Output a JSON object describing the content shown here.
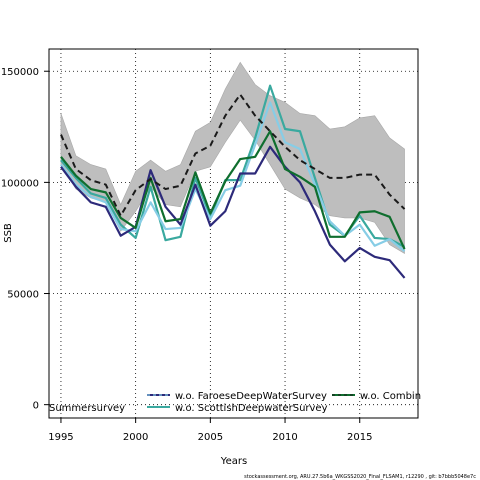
{
  "chart_data": {
    "type": "line",
    "xlabel": "Years",
    "ylabel": "SSB",
    "xlim": [
      1994.2,
      2018.9
    ],
    "ylim": [
      -6000,
      160000
    ],
    "x_ticks": [
      1995,
      2000,
      2005,
      2010,
      2015
    ],
    "y_ticks": [
      0,
      50000,
      100000,
      150000
    ],
    "y_tick_labels": [
      "0",
      "50000",
      "100000",
      "150000"
    ],
    "grid": true,
    "legend_placement": "bottom",
    "x": [
      1995,
      1996,
      1997,
      1998,
      1999,
      2000,
      2001,
      2002,
      2003,
      2004,
      2005,
      2006,
      2007,
      2008,
      2009,
      2010,
      2011,
      2012,
      2013,
      2014,
      2015,
      2016,
      2017,
      2018
    ],
    "confidence_band": {
      "upper": [
        131000,
        112000,
        108000,
        106000,
        90000,
        105000,
        110000,
        105000,
        108000,
        123000,
        127000,
        142000,
        154000,
        144000,
        139000,
        136000,
        131000,
        130000,
        124000,
        125000,
        129000,
        130000,
        120000,
        115000
      ],
      "lower": [
        108000,
        97000,
        93000,
        91000,
        78000,
        87000,
        98000,
        90000,
        89000,
        105000,
        107000,
        118000,
        128000,
        119000,
        108000,
        97000,
        93000,
        90000,
        85000,
        84000,
        84000,
        82000,
        72000,
        68000
      ],
      "color": "#bebebe"
    },
    "series": [
      {
        "name": "",
        "color": "#1a1a1a",
        "style": "dashed",
        "values": [
          121500,
          106000,
          101000,
          99000,
          85000,
          96500,
          101500,
          97000,
          98500,
          113000,
          116500,
          130000,
          139500,
          130000,
          123000,
          116000,
          110000,
          106000,
          102000,
          102000,
          103500,
          103500,
          94500,
          88000
        ]
      },
      {
        "name": "w.o. FaroeseDeepWaterSurvey",
        "color": "#2d2a7a",
        "style": "solid",
        "values": [
          107000,
          98000,
          91000,
          89000,
          76000,
          80000,
          105500,
          89000,
          81000,
          99000,
          80500,
          87000,
          104000,
          104000,
          116000,
          107000,
          100000,
          87000,
          72000,
          64500,
          70500,
          66500,
          65000,
          57000
        ]
      },
      {
        "name": "w.o. ScottishDeepwaterSurvey",
        "color": "#3aa99f",
        "style": "solid",
        "values": [
          110000,
          102000,
          95000,
          93000,
          81000,
          75000,
          98000,
          74000,
          75500,
          102000,
          84500,
          101000,
          101000,
          120000,
          143500,
          124000,
          123000,
          102000,
          81000,
          76000,
          85000,
          75000,
          74500,
          71000
        ]
      },
      {
        "name": "w.o. Combin",
        "color": "#0f6e2e",
        "style": "solid",
        "values": [
          111500,
          103000,
          97000,
          95500,
          84000,
          79500,
          102000,
          82500,
          83500,
          104500,
          86000,
          100500,
          110500,
          111500,
          123000,
          106000,
          102500,
          98000,
          75500,
          75500,
          86500,
          87000,
          84500,
          70000
        ]
      },
      {
        "name": "Summersurvey",
        "color": "#87cde6",
        "style": "solid",
        "values": [
          108000,
          99000,
          93500,
          91000,
          79000,
          78000,
          91000,
          79000,
          79500,
          97000,
          83500,
          96500,
          98500,
          117000,
          136000,
          118000,
          115000,
          99000,
          82500,
          76000,
          81000,
          71500,
          74500,
          69000
        ]
      }
    ]
  },
  "footer_text": "stockassessment.org,  ARU.27.5b6a_WKGSS2020_Final_FLSAM1,  r12290 ,  git:  b7bbb5048e7c"
}
